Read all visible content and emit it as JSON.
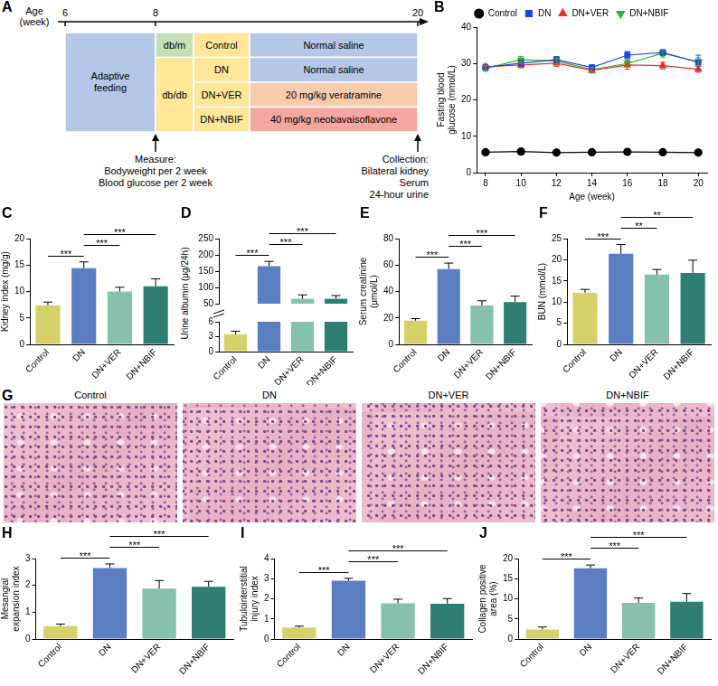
{
  "diagram": {
    "panel": "A",
    "axis_label": "Age (week)",
    "ticks": [
      6,
      8,
      20
    ],
    "phase": "Adaptive feeding",
    "strains": [
      {
        "label": "db/m",
        "groups": [
          {
            "label": "Control",
            "treatment": "Normal saline"
          }
        ]
      },
      {
        "label": "db/db",
        "groups": [
          {
            "label": "DN",
            "treatment": "Normal saline"
          },
          {
            "label": "DN+VER",
            "treatment": "20 mg/kg veratramine"
          },
          {
            "label": "DN+NBIF",
            "treatment": "40 mg/kg neobavaisoflavone"
          }
        ]
      }
    ],
    "measure": [
      "Measure:",
      "Bodyweight per 2 week",
      "Blood glucose per 2 week"
    ],
    "collection": [
      "Collection:",
      "Bilateral kidney",
      "Serum",
      "24-hour urine"
    ]
  },
  "chart_data": [
    {
      "panel": "B",
      "type": "line",
      "x_label": "Age (week)",
      "y_label": "Fasting blood glucose (mmol/L)",
      "x": [
        8,
        10,
        12,
        14,
        16,
        18,
        20
      ],
      "xlim": [
        7.5,
        20.5
      ],
      "xticks": [
        8,
        10,
        12,
        14,
        16,
        18,
        20
      ],
      "ylim": [
        0,
        40
      ],
      "yticks": [
        0,
        10,
        20,
        30,
        40
      ],
      "grid": false,
      "legend": "top",
      "series": [
        {
          "name": "Control",
          "color": "#000000",
          "marker": "circle",
          "values": [
            5.6,
            5.8,
            5.5,
            5.6,
            5.7,
            5.6,
            5.5
          ],
          "errors": [
            0.2,
            0.2,
            0.2,
            0.2,
            0.2,
            0.2,
            0.2
          ]
        },
        {
          "name": "DN",
          "color": "#2443dd",
          "marker": "square",
          "values": [
            28.9,
            30.1,
            31.0,
            28.9,
            32.3,
            33.0,
            30.3
          ],
          "errors": [
            0.8,
            1.0,
            0.9,
            0.7,
            1.0,
            0.8,
            2.0
          ]
        },
        {
          "name": "DN+VER",
          "color": "#e8302a",
          "marker": "triangle",
          "values": [
            29.1,
            29.6,
            30.1,
            28.1,
            29.6,
            29.4,
            28.4
          ],
          "errors": [
            0.7,
            0.8,
            0.9,
            0.7,
            1.2,
            0.9,
            0.8
          ]
        },
        {
          "name": "DN+NBIF",
          "color": "#2db52d",
          "marker": "triangle-down",
          "values": [
            28.7,
            31.0,
            30.7,
            28.3,
            30.0,
            32.8,
            30.5
          ],
          "errors": [
            0.7,
            0.9,
            0.8,
            0.6,
            0.9,
            1.0,
            1.1
          ]
        }
      ]
    },
    {
      "panel": "C",
      "type": "bar",
      "y_label": "Kidney index (mg/g)",
      "categories": [
        "Control",
        "DN",
        "DN+VER",
        "DN+NBIF"
      ],
      "values": [
        7.4,
        14.4,
        10.0,
        11.0
      ],
      "errors": [
        0.6,
        1.2,
        0.8,
        1.4
      ],
      "colors": [
        "#d6d26b",
        "#5b7ec2",
        "#85c1ad",
        "#2e7f72"
      ],
      "ylim": [
        0,
        20
      ],
      "yticks": [
        0,
        5,
        10,
        15,
        20
      ],
      "grid": false,
      "comparisons": [
        {
          "pair": [
            "Control",
            "DN"
          ],
          "label": "***"
        },
        {
          "pair": [
            "DN",
            "DN+VER"
          ],
          "label": "***"
        },
        {
          "pair": [
            "DN",
            "DN+NBIF"
          ],
          "label": "***"
        }
      ]
    },
    {
      "panel": "D",
      "type": "bar",
      "y_label": "Urine albumin (μg/24h)",
      "categories": [
        "Control",
        "DN",
        "DN+VER",
        "DN+NBIF"
      ],
      "values": [
        3.5,
        165,
        65,
        65
      ],
      "errors": [
        0.6,
        15,
        12,
        10
      ],
      "colors": [
        "#d6d26b",
        "#5b7ec2",
        "#85c1ad",
        "#2e7f72"
      ],
      "y_segments": [
        {
          "ylim": [
            0,
            6
          ],
          "yticks": [
            0,
            3,
            6
          ]
        },
        {
          "ylim": [
            50,
            250
          ],
          "yticks": [
            50,
            100,
            150,
            200,
            250
          ]
        }
      ],
      "grid": false,
      "comparisons": [
        {
          "pair": [
            "Control",
            "DN"
          ],
          "label": "***"
        },
        {
          "pair": [
            "DN",
            "DN+VER"
          ],
          "label": "***"
        },
        {
          "pair": [
            "DN",
            "DN+NBIF"
          ],
          "label": "***"
        }
      ]
    },
    {
      "panel": "E",
      "type": "bar",
      "y_label": "Serum creatinine (μmol/L)",
      "categories": [
        "Control",
        "DN",
        "DN+VER",
        "DN+NBIF"
      ],
      "values": [
        18,
        57,
        29.5,
        32
      ],
      "errors": [
        1.5,
        4.5,
        3.5,
        4.5
      ],
      "colors": [
        "#d6d26b",
        "#5b7ec2",
        "#85c1ad",
        "#2e7f72"
      ],
      "ylim": [
        0,
        80
      ],
      "yticks": [
        0,
        20,
        40,
        60,
        80
      ],
      "grid": false,
      "comparisons": [
        {
          "pair": [
            "Control",
            "DN"
          ],
          "label": "***"
        },
        {
          "pair": [
            "DN",
            "DN+VER"
          ],
          "label": "***"
        },
        {
          "pair": [
            "DN",
            "DN+NBIF"
          ],
          "label": "***"
        }
      ]
    },
    {
      "panel": "F",
      "type": "bar",
      "y_label": "BUN (mmol/L)",
      "categories": [
        "Control",
        "DN",
        "DN+VER",
        "DN+NBIF"
      ],
      "values": [
        12.2,
        21.4,
        16.5,
        16.9
      ],
      "errors": [
        0.8,
        2.2,
        1.2,
        3.0
      ],
      "colors": [
        "#d6d26b",
        "#5b7ec2",
        "#85c1ad",
        "#2e7f72"
      ],
      "ylim": [
        0,
        25
      ],
      "yticks": [
        0,
        5,
        10,
        15,
        20,
        25
      ],
      "grid": false,
      "comparisons": [
        {
          "pair": [
            "Control",
            "DN"
          ],
          "label": "***"
        },
        {
          "pair": [
            "DN",
            "DN+VER"
          ],
          "label": "**"
        },
        {
          "pair": [
            "DN",
            "DN+NBIF"
          ],
          "label": "**"
        }
      ]
    },
    {
      "panel": "H",
      "type": "bar",
      "y_label": "Mesangial expansion index",
      "categories": [
        "Control",
        "DN",
        "DN+VER",
        "DN+NBIF"
      ],
      "values": [
        0.48,
        2.65,
        1.88,
        1.95
      ],
      "errors": [
        0.08,
        0.15,
        0.3,
        0.2
      ],
      "colors": [
        "#d6d26b",
        "#5b7ec2",
        "#85c1ad",
        "#2e7f72"
      ],
      "ylim": [
        0,
        3
      ],
      "yticks": [
        0,
        1,
        2,
        3
      ],
      "grid": false,
      "comparisons": [
        {
          "pair": [
            "Control",
            "DN"
          ],
          "label": "***"
        },
        {
          "pair": [
            "DN",
            "DN+VER"
          ],
          "label": "***"
        },
        {
          "pair": [
            "DN",
            "DN+NBIF"
          ],
          "label": "***"
        }
      ]
    },
    {
      "panel": "I",
      "type": "bar",
      "y_label": "Tubulointerstitial injury index",
      "categories": [
        "Control",
        "DN",
        "DN+VER",
        "DN+NBIF"
      ],
      "values": [
        0.58,
        2.9,
        1.78,
        1.76
      ],
      "errors": [
        0.06,
        0.12,
        0.2,
        0.25
      ],
      "colors": [
        "#d6d26b",
        "#5b7ec2",
        "#85c1ad",
        "#2e7f72"
      ],
      "ylim": [
        0,
        4
      ],
      "yticks": [
        0,
        1,
        2,
        3,
        4
      ],
      "grid": false,
      "comparisons": [
        {
          "pair": [
            "Control",
            "DN"
          ],
          "label": "***"
        },
        {
          "pair": [
            "DN",
            "DN+VER"
          ],
          "label": "***"
        },
        {
          "pair": [
            "DN",
            "DN+NBIF"
          ],
          "label": "***"
        }
      ]
    },
    {
      "panel": "J",
      "type": "bar",
      "y_label": "Collagen positive area (%)",
      "categories": [
        "Control",
        "DN",
        "DN+VER",
        "DN+NBIF"
      ],
      "values": [
        2.4,
        17.6,
        9.0,
        9.3
      ],
      "errors": [
        0.6,
        0.8,
        1.2,
        2.0
      ],
      "colors": [
        "#d6d26b",
        "#5b7ec2",
        "#85c1ad",
        "#2e7f72"
      ],
      "ylim": [
        0,
        20
      ],
      "yticks": [
        0,
        5,
        10,
        15,
        20
      ],
      "grid": false,
      "comparisons": [
        {
          "pair": [
            "Control",
            "DN"
          ],
          "label": "***"
        },
        {
          "pair": [
            "DN",
            "DN+VER"
          ],
          "label": "***"
        },
        {
          "pair": [
            "DN",
            "DN+NBIF"
          ],
          "label": "***"
        }
      ]
    }
  ],
  "micrographs": {
    "panel": "G",
    "labels": [
      "Control",
      "DN",
      "DN+VER",
      "DN+NBIF"
    ]
  }
}
